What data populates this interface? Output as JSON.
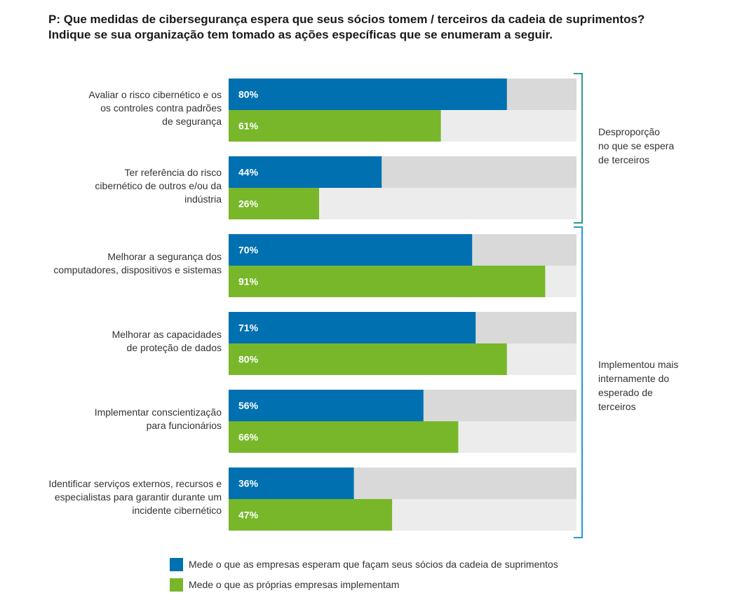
{
  "title": {
    "line1": "P: Que medidas de cibersegurança espera que seus sócios tomem / terceiros da cadeia de suprimentos?",
    "line2": "Indique se sua organização tem tomado as ações específicas que se enumeram a seguir."
  },
  "colors": {
    "expected": "#0070b0",
    "implemented": "#78b72a",
    "track_expected": "#d9d9d9",
    "track_implemented": "#ececec",
    "bracket_top": "#2f9a8a",
    "bracket_bottom": "#1f9ad6"
  },
  "categories": [
    {
      "lines": [
        "Avaliar o risco cibernético e os",
        "os controles contra padrões",
        "de segurança"
      ]
    },
    {
      "lines": [
        "Ter referência do risco",
        "cibernético de outros e/ou da",
        "indústria"
      ]
    },
    {
      "lines": [
        "Melhorar a segurança dos",
        "computadores, dispositivos e sistemas"
      ]
    },
    {
      "lines": [
        "Melhorar as capacidades",
        "de proteção de dados"
      ]
    },
    {
      "lines": [
        "Implementar conscientização",
        "para funcionários"
      ]
    },
    {
      "lines": [
        "Identificar serviços externos, recursos e",
        "especialistas para garantir durante um",
        "incidente cibernético"
      ]
    }
  ],
  "brackets": [
    {
      "lines": [
        "Desproporção",
        "no que se espera",
        "de terceiros"
      ]
    },
    {
      "lines": [
        "Implementou mais",
        "internamente do",
        "esperado de",
        "terceiros"
      ]
    }
  ],
  "legend": {
    "expected": "Mede o que as empresas esperam que façam seus sócios da cadeia de suprimentos",
    "implemented": "Mede o que as próprias empresas implementam"
  },
  "chart_data": {
    "type": "bar",
    "orientation": "horizontal",
    "title": "P: Que medidas de cibersegurança espera que seus sócios tomem / terceiros da cadeia de suprimentos? Indique se sua organização tem tomado as ações específicas que se enumeram a seguir.",
    "categories": [
      "Avaliar o risco cibernético e os os controles contra padrões de segurança",
      "Ter referência do risco cibernético de outros e/ou da indústria",
      "Melhorar a segurança dos computadores, dispositivos e sistemas",
      "Melhorar as capacidades de proteção de dados",
      "Implementar conscientização para funcionários",
      "Identificar serviços externos, recursos e especialistas para garantir durante um incidente cibernético"
    ],
    "series": [
      {
        "name": "Mede o que as empresas esperam que façam seus sócios da cadeia de suprimentos",
        "values": [
          80,
          44,
          70,
          71,
          56,
          36
        ],
        "labels": [
          "80%",
          "44%",
          "70%",
          "71%",
          "56%",
          "36%"
        ]
      },
      {
        "name": "Mede o que as próprias empresas implementam",
        "values": [
          61,
          26,
          91,
          80,
          66,
          47
        ],
        "labels": [
          "61%",
          "26%",
          "91%",
          "80%",
          "66%",
          "47%"
        ]
      }
    ],
    "xlim": [
      0,
      100
    ],
    "unit": "%",
    "legend_position": "bottom"
  }
}
